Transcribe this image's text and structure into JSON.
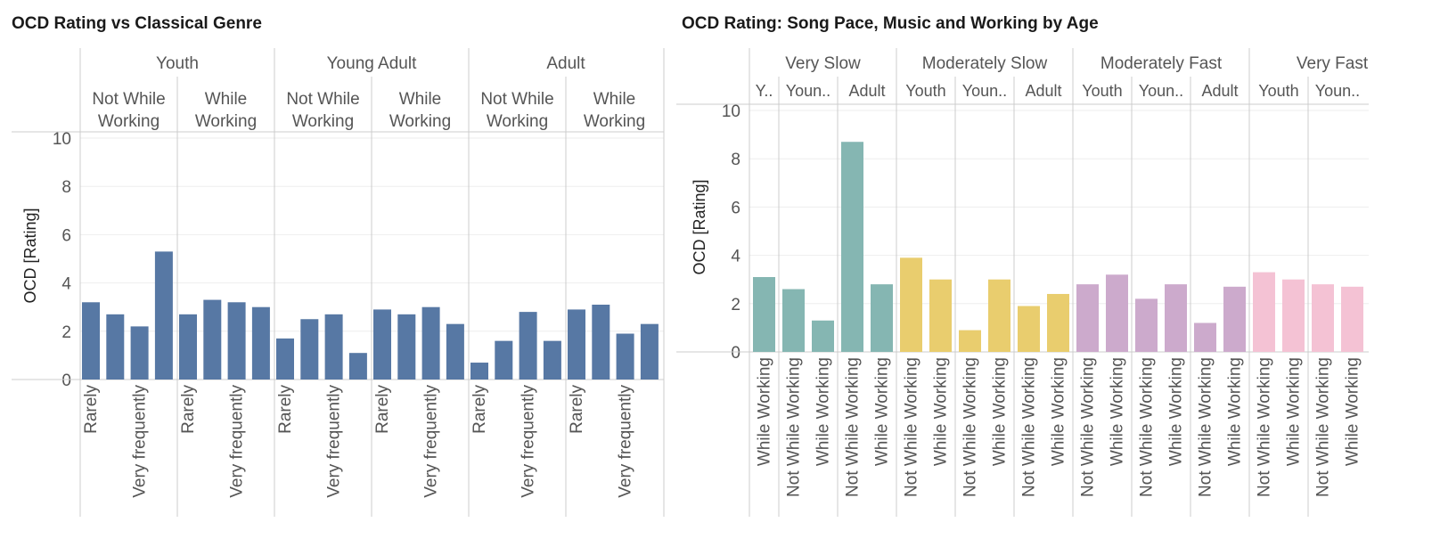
{
  "chart_data": [
    {
      "type": "bar",
      "title": "OCD Rating vs Classical Genre",
      "ylabel": "OCD [Rating]",
      "xlabel": "",
      "ylim": [
        0,
        10
      ],
      "yticks": [
        0,
        2,
        4,
        6,
        8,
        10
      ],
      "grid": true,
      "color": "#5778a4",
      "headers": {
        "age_groups": [
          "Youth",
          "Young Adult",
          "Adult"
        ],
        "working": [
          "Not While\nWorking",
          "While\nWorking"
        ]
      },
      "tick_labels_shown": [
        "Rarely",
        "Very frequently"
      ],
      "panels": [
        {
          "age": "Youth",
          "working": "Not While Working",
          "values": [
            3.2,
            2.7,
            2.2,
            5.3
          ]
        },
        {
          "age": "Youth",
          "working": "While Working",
          "values": [
            2.7,
            3.3,
            3.2,
            3.0
          ]
        },
        {
          "age": "Young Adult",
          "working": "Not While Working",
          "values": [
            1.7,
            2.5,
            2.7,
            1.1
          ]
        },
        {
          "age": "Young Adult",
          "working": "While Working",
          "values": [
            2.9,
            2.7,
            3.0,
            2.3
          ]
        },
        {
          "age": "Adult",
          "working": "Not While Working",
          "values": [
            0.7,
            1.6,
            2.8,
            1.6
          ]
        },
        {
          "age": "Adult",
          "working": "While Working",
          "values": [
            2.9,
            3.1,
            1.9,
            2.3
          ]
        }
      ]
    },
    {
      "type": "bar",
      "title": "OCD Rating: Song Pace, Music and Working by Age",
      "ylabel": "OCD [Rating]",
      "xlabel": "",
      "ylim": [
        0,
        10
      ],
      "yticks": [
        0,
        2,
        4,
        6,
        8,
        10
      ],
      "grid": true,
      "colors": {
        "Very Slow": "#85b6b2",
        "Moderately Slow": "#e9cd6e",
        "Moderately Fast": "#ccaacc",
        "Very Fast": "#f4c2d4"
      },
      "paces": [
        "Very Slow",
        "Moderately Slow",
        "Moderately Fast",
        "Very Fast"
      ],
      "groups": [
        {
          "pace": "Very Slow",
          "age": "Y..",
          "bars": [
            {
              "label": "While Working",
              "value": 3.1
            }
          ]
        },
        {
          "pace": "Very Slow",
          "age": "Youn..",
          "bars": [
            {
              "label": "Not While Working",
              "value": 2.6
            },
            {
              "label": "While Working",
              "value": 1.3
            }
          ]
        },
        {
          "pace": "Very Slow",
          "age": "Adult",
          "bars": [
            {
              "label": "Not While Working",
              "value": 8.7
            },
            {
              "label": "While Working",
              "value": 2.8
            }
          ]
        },
        {
          "pace": "Moderately Slow",
          "age": "Youth",
          "bars": [
            {
              "label": "Not While Working",
              "value": 3.9
            },
            {
              "label": "While Working",
              "value": 3.0
            }
          ]
        },
        {
          "pace": "Moderately Slow",
          "age": "Youn..",
          "bars": [
            {
              "label": "Not While Working",
              "value": 0.9
            },
            {
              "label": "While Working",
              "value": 3.0
            }
          ]
        },
        {
          "pace": "Moderately Slow",
          "age": "Adult",
          "bars": [
            {
              "label": "Not While Working",
              "value": 1.9
            },
            {
              "label": "While Working",
              "value": 2.4
            }
          ]
        },
        {
          "pace": "Moderately Fast",
          "age": "Youth",
          "bars": [
            {
              "label": "Not While Working",
              "value": 2.8
            },
            {
              "label": "While Working",
              "value": 3.2
            }
          ]
        },
        {
          "pace": "Moderately Fast",
          "age": "Youn..",
          "bars": [
            {
              "label": "Not While Working",
              "value": 2.2
            },
            {
              "label": "While Working",
              "value": 2.8
            }
          ]
        },
        {
          "pace": "Moderately Fast",
          "age": "Adult",
          "bars": [
            {
              "label": "Not While Working",
              "value": 1.2
            },
            {
              "label": "While Working",
              "value": 2.7
            }
          ]
        },
        {
          "pace": "Very Fast",
          "age": "Youth",
          "bars": [
            {
              "label": "Not While Working",
              "value": 3.3
            },
            {
              "label": "While Working",
              "value": 3.0
            }
          ]
        },
        {
          "pace": "Very Fast",
          "age": "Youn..",
          "bars": [
            {
              "label": "Not While Working",
              "value": 2.8
            },
            {
              "label": "While Working",
              "value": 2.7
            }
          ]
        }
      ]
    }
  ]
}
